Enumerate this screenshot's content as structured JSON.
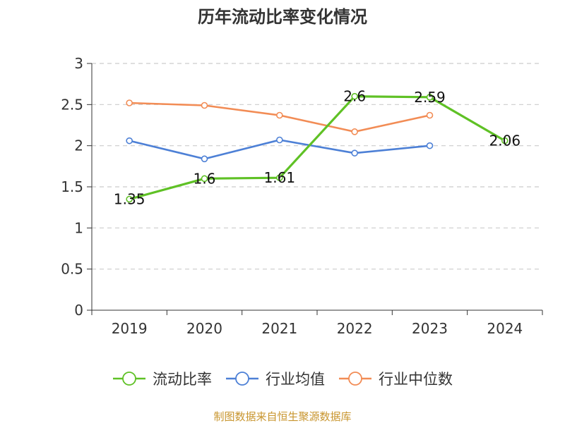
{
  "chart_data": {
    "type": "line",
    "title": "历年流动比率变化情况",
    "categories": [
      "2019",
      "2020",
      "2021",
      "2022",
      "2023",
      "2024"
    ],
    "ylim": [
      0,
      3
    ],
    "yticks": [
      0,
      0.5,
      1,
      1.5,
      2,
      2.5,
      3
    ],
    "ytick_labels": [
      "0",
      "0.5",
      "1",
      "1.5",
      "2",
      "2.5",
      "3"
    ],
    "grid": true,
    "legend_position": "bottom",
    "series": [
      {
        "name": "流动比率",
        "color": "#5fc125",
        "values": [
          1.35,
          1.6,
          1.61,
          2.6,
          2.59,
          2.06
        ],
        "labels": [
          "1.35",
          "1.6",
          "1.61",
          "2.6",
          "2.59",
          "2.06"
        ]
      },
      {
        "name": "行业均值",
        "color": "#4d80d6",
        "values": [
          2.06,
          1.84,
          2.07,
          1.91,
          2.0,
          null
        ]
      },
      {
        "name": "行业中位数",
        "color": "#f28c55",
        "values": [
          2.52,
          2.49,
          2.37,
          2.17,
          2.37,
          null
        ]
      }
    ]
  },
  "source_text": "制图数据来自恒生聚源数据库",
  "colors": {
    "source": "#c8952e",
    "axis": "#333333",
    "grid": "#cccccc"
  }
}
